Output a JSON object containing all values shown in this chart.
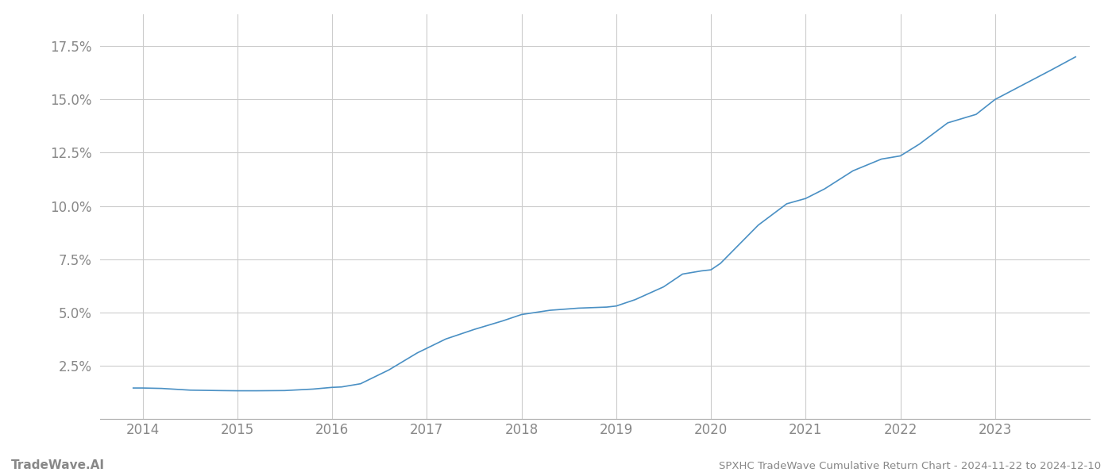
{
  "title_left": "TradeWave.AI",
  "title_right": "SPXHC TradeWave Cumulative Return Chart - 2024-11-22 to 2024-12-10",
  "x_years": [
    2014,
    2015,
    2016,
    2017,
    2018,
    2019,
    2020,
    2021,
    2022,
    2023
  ],
  "line_color": "#4a90c4",
  "background_color": "#ffffff",
  "grid_color": "#cccccc",
  "text_color": "#888888",
  "ylim": [
    0.0,
    0.19
  ],
  "yticks": [
    0.025,
    0.05,
    0.075,
    0.1,
    0.125,
    0.15,
    0.175
  ],
  "data_x": [
    2013.9,
    2014.0,
    2014.2,
    2014.5,
    2014.8,
    2015.0,
    2015.2,
    2015.5,
    2015.8,
    2016.0,
    2016.1,
    2016.3,
    2016.6,
    2016.9,
    2017.2,
    2017.5,
    2017.8,
    2018.0,
    2018.3,
    2018.6,
    2018.9,
    2019.0,
    2019.2,
    2019.5,
    2019.7,
    2019.9,
    2020.0,
    2020.1,
    2020.3,
    2020.5,
    2020.8,
    2021.0,
    2021.2,
    2021.5,
    2021.8,
    2022.0,
    2022.2,
    2022.5,
    2022.8,
    2023.0,
    2023.3,
    2023.6,
    2023.85
  ],
  "data_y": [
    0.0145,
    0.0145,
    0.0143,
    0.0135,
    0.0133,
    0.0132,
    0.0132,
    0.0133,
    0.014,
    0.0148,
    0.015,
    0.0165,
    0.023,
    0.031,
    0.0375,
    0.042,
    0.046,
    0.049,
    0.051,
    0.052,
    0.0525,
    0.053,
    0.056,
    0.062,
    0.068,
    0.0695,
    0.07,
    0.073,
    0.082,
    0.091,
    0.101,
    0.1035,
    0.108,
    0.1165,
    0.122,
    0.1235,
    0.129,
    0.139,
    0.143,
    0.15,
    0.157,
    0.164,
    0.17
  ]
}
